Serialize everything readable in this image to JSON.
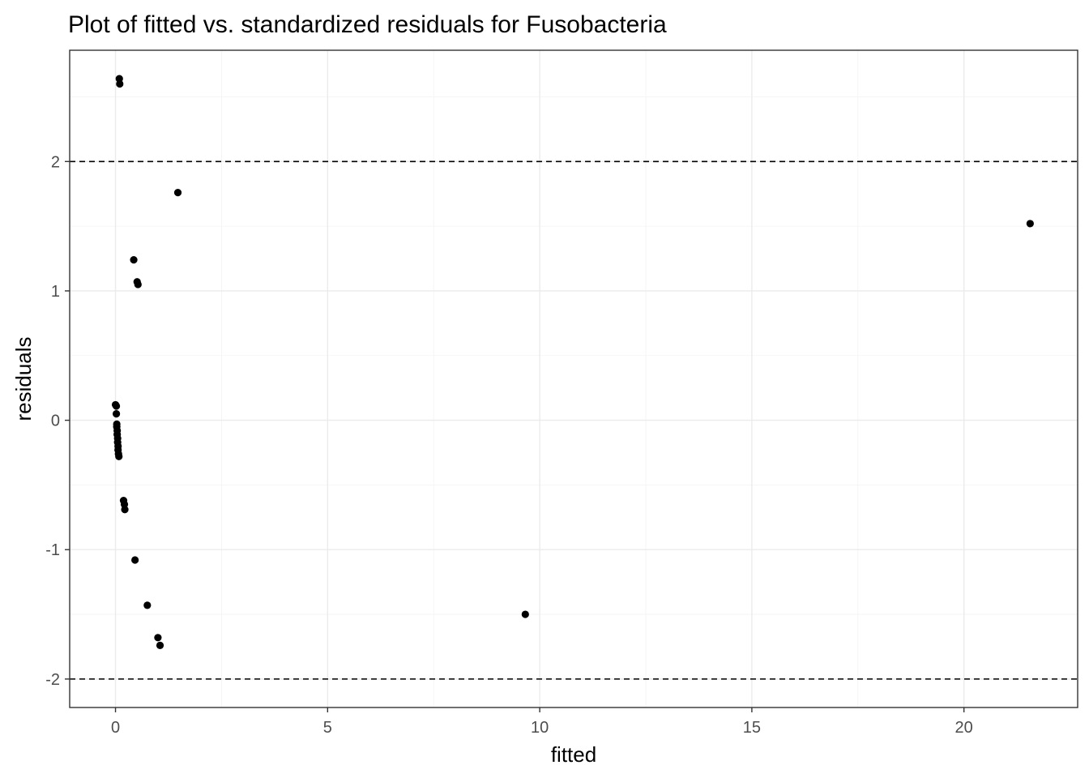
{
  "chart_data": {
    "type": "scatter",
    "title": "Plot of fitted vs. standardized residuals for Fusobacteria",
    "xlabel": "fitted",
    "ylabel": "residuals",
    "xlim": [
      -1.08,
      22.68
    ],
    "ylim": [
      -2.22,
      2.86
    ],
    "xticks": [
      0,
      5,
      10,
      15,
      20
    ],
    "xtick_labels": [
      "0",
      "5",
      "10",
      "15",
      "20"
    ],
    "yticks": [
      -2,
      -1,
      0,
      1,
      2
    ],
    "ytick_labels": [
      "-2",
      "-1",
      "0",
      "1",
      "2"
    ],
    "xminor": [
      2.5,
      7.5,
      12.5,
      17.5
    ],
    "yminor": [
      -1.5,
      -0.5,
      0.5,
      1.5,
      2.5
    ],
    "grid": true,
    "hlines": [
      2,
      -2
    ],
    "hline_style": "dashed",
    "point_color": "#000000",
    "points": [
      {
        "x": 0.09,
        "y": 2.64
      },
      {
        "x": 0.1,
        "y": 2.6
      },
      {
        "x": 1.47,
        "y": 1.76
      },
      {
        "x": 21.56,
        "y": 1.52
      },
      {
        "x": 0.43,
        "y": 1.24
      },
      {
        "x": 0.51,
        "y": 1.07
      },
      {
        "x": 0.53,
        "y": 1.05
      },
      {
        "x": 0.0,
        "y": 0.12
      },
      {
        "x": 0.02,
        "y": 0.11
      },
      {
        "x": 0.02,
        "y": 0.05
      },
      {
        "x": 0.03,
        "y": -0.03
      },
      {
        "x": 0.03,
        "y": -0.05
      },
      {
        "x": 0.04,
        "y": -0.08
      },
      {
        "x": 0.04,
        "y": -0.11
      },
      {
        "x": 0.05,
        "y": -0.14
      },
      {
        "x": 0.05,
        "y": -0.17
      },
      {
        "x": 0.06,
        "y": -0.2
      },
      {
        "x": 0.06,
        "y": -0.23
      },
      {
        "x": 0.07,
        "y": -0.26
      },
      {
        "x": 0.08,
        "y": -0.28
      },
      {
        "x": 0.19,
        "y": -0.62
      },
      {
        "x": 0.21,
        "y": -0.65
      },
      {
        "x": 0.22,
        "y": -0.69
      },
      {
        "x": 0.46,
        "y": -1.08
      },
      {
        "x": 0.75,
        "y": -1.43
      },
      {
        "x": 9.66,
        "y": -1.5
      },
      {
        "x": 1.0,
        "y": -1.68
      },
      {
        "x": 1.05,
        "y": -1.74
      }
    ]
  }
}
